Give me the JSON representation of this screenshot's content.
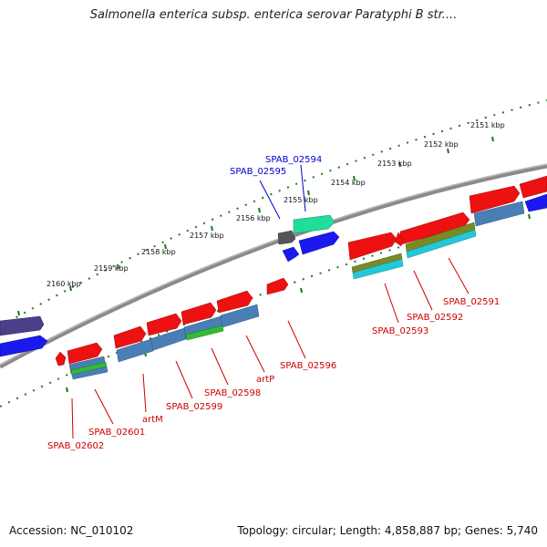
{
  "header": {
    "title": "Salmonella enterica subsp. enterica serovar Paratyphi B str...."
  },
  "footer": {
    "accession": "Accession: NC_010102",
    "summary": "Topology: circular; Length: 4,858,887 bp; Genes: 5,740"
  },
  "colors": {
    "label_red": "#cc0000",
    "label_blue": "#0000cc",
    "backbone": "#8a8a8a",
    "tick_green": "#1a7a1a",
    "red_gene": "#ee1111",
    "blue_gene": "#1a1aee",
    "steel_blue": "#4a7fb5",
    "green_bar": "#33bb33",
    "cyan_bar": "#22c8d8",
    "olive_bar": "#7a8a22",
    "teal_gene": "#22dd99",
    "gray_gene": "#555555",
    "purple_gene": "#4a3f8a"
  },
  "scale": {
    "unit": "kbp",
    "labels": [
      "2151 kbp",
      "2152 kbp",
      "2153 kbp",
      "2154 kbp",
      "2155 kbp",
      "2156 kbp",
      "2157 kbp",
      "2158 kbp",
      "2159 kbp",
      "2160 kbp"
    ]
  },
  "genes": [
    {
      "label": "SPAB_02594",
      "color": "blue"
    },
    {
      "label": "SPAB_02595",
      "color": "blue"
    },
    {
      "label": "SPAB_02591",
      "color": "red"
    },
    {
      "label": "SPAB_02592",
      "color": "red"
    },
    {
      "label": "SPAB_02593",
      "color": "red"
    },
    {
      "label": "SPAB_02596",
      "color": "red"
    },
    {
      "label": "artP",
      "color": "red"
    },
    {
      "label": "SPAB_02598",
      "color": "red"
    },
    {
      "label": "SPAB_02599",
      "color": "red"
    },
    {
      "label": "artM",
      "color": "red"
    },
    {
      "label": "SPAB_02601",
      "color": "red"
    },
    {
      "label": "SPAB_02602",
      "color": "red"
    }
  ]
}
